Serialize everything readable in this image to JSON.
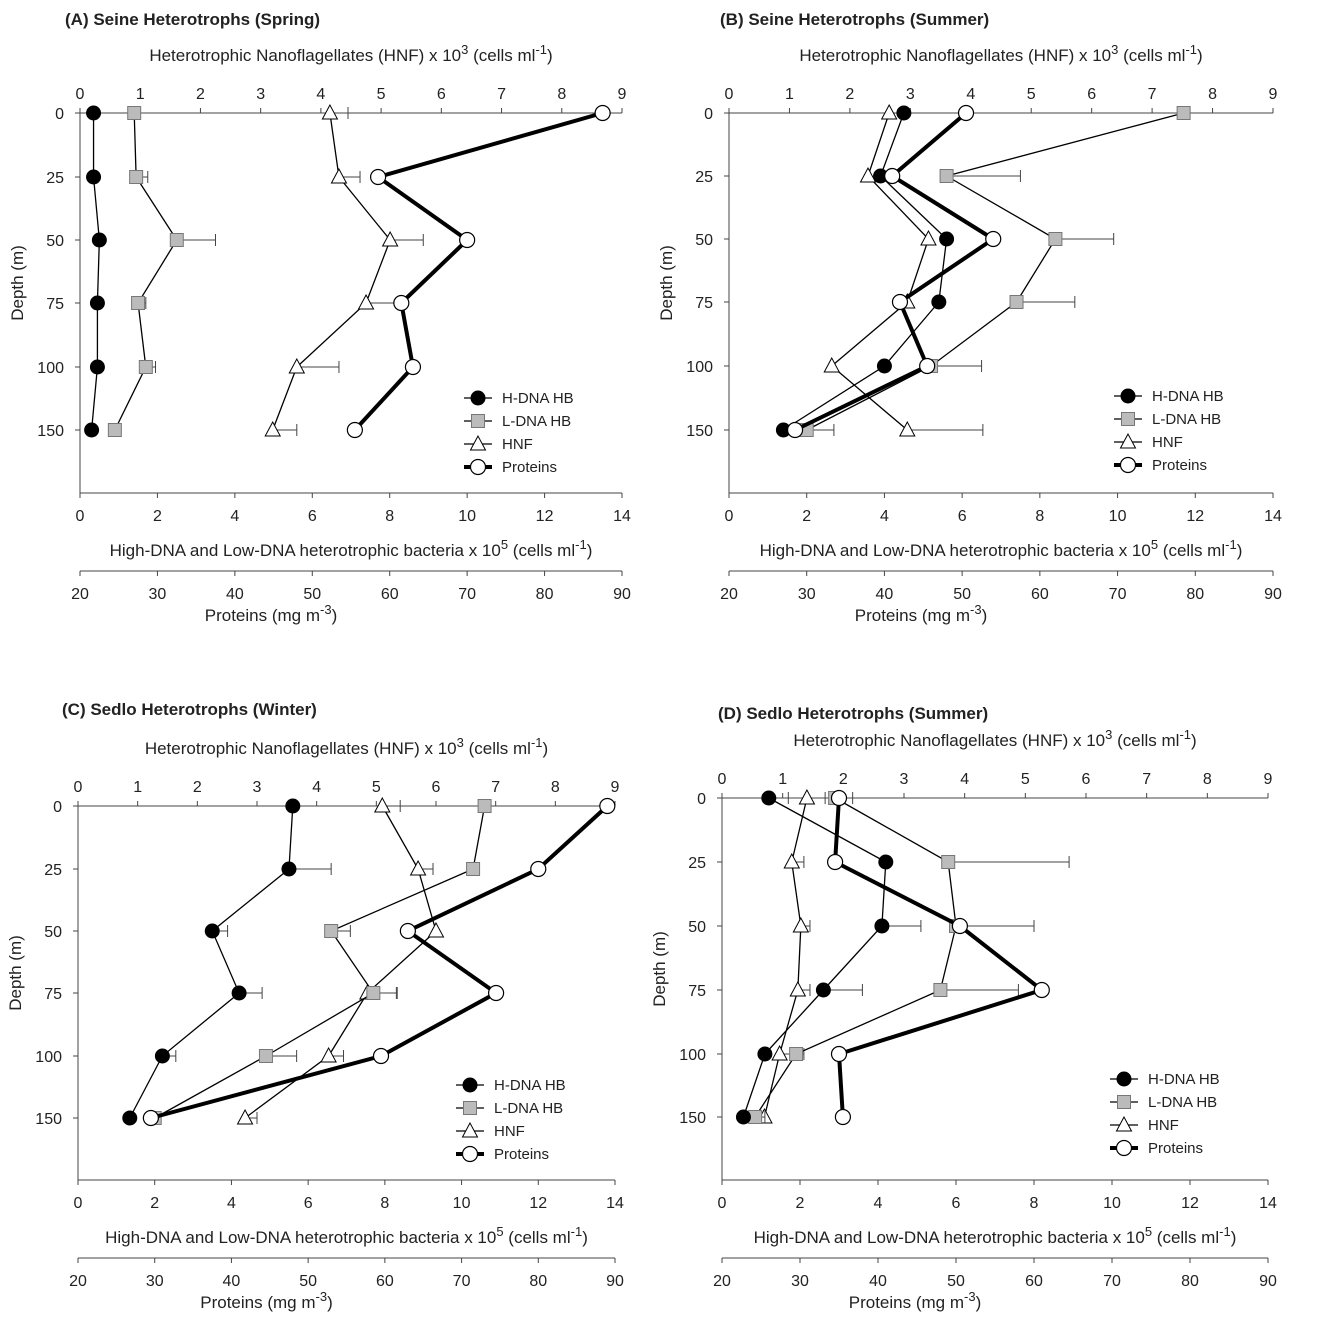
{
  "colors": {
    "hdna_fill": "#000000",
    "ldna_fill": "#bbbbbb",
    "hnf_fill": "#ffffff",
    "protein_fill": "#ffffff",
    "line": "#000000",
    "axis": "#444444"
  },
  "markers": {
    "hdna": "filled-circle",
    "ldna": "grey-square",
    "hnf": "open-triangle",
    "proteins": "open-circle"
  },
  "chart_data": [
    {
      "type": "line",
      "title": "(A) Seine Heterotrophs (Spring)",
      "top_axis": {
        "label": "Heterotrophic Nanoflagellates (HNF) x 10",
        "sup": "3",
        "unit": " (cells ml",
        "unit_sup": "-1",
        "unit_end": ")",
        "ticks": [
          "0",
          "1",
          "2",
          "3",
          "4",
          "5",
          "6",
          "7",
          "8",
          "9"
        ],
        "range": [
          0,
          9
        ]
      },
      "bottom_axis": {
        "label": "High-DNA and Low-DNA heterotrophic bacteria x 10",
        "sup": "5",
        "unit": " (cells ml",
        "unit_sup": "-1",
        "unit_end": ")",
        "ticks": [
          "0",
          "2",
          "4",
          "6",
          "8",
          "10",
          "12",
          "14"
        ],
        "range": [
          0,
          14
        ]
      },
      "protein_axis": {
        "label": "Proteins (mg m",
        "sup": "-3",
        "end": ")",
        "ticks": [
          "20",
          "30",
          "40",
          "50",
          "60",
          "70",
          "80",
          "90"
        ],
        "range": [
          20,
          90
        ]
      },
      "y_axis": {
        "label": "Depth (m)",
        "ticks": [
          "0",
          "25",
          "50",
          "75",
          "100",
          "150"
        ]
      },
      "depths": [
        0,
        25,
        50,
        75,
        100,
        150
      ],
      "legend": [
        "H-DNA HB",
        "L-DNA HB",
        "HNF",
        "Proteins"
      ],
      "series": [
        {
          "name": "H-DNA HB",
          "axis": "bottom",
          "values": [
            0.35,
            0.35,
            0.5,
            0.45,
            0.45,
            0.3
          ],
          "err": [
            0,
            0,
            0,
            0,
            0,
            0
          ]
        },
        {
          "name": "L-DNA HB",
          "axis": "bottom",
          "values": [
            1.4,
            1.45,
            2.5,
            1.5,
            1.7,
            0.9
          ],
          "err": [
            0.1,
            0.3,
            1.0,
            0.2,
            0.25,
            0
          ]
        },
        {
          "name": "HNF",
          "axis": "top",
          "values": [
            4.15,
            4.3,
            5.15,
            4.75,
            3.6,
            3.2
          ],
          "err": [
            0.3,
            0.35,
            0.55,
            0.5,
            0.7,
            0.4
          ]
        },
        {
          "name": "Proteins",
          "axis": "protein",
          "values": [
            87.5,
            58.5,
            70.0,
            61.5,
            63.0,
            55.5
          ],
          "err": [
            0,
            0,
            0,
            0,
            0,
            0
          ]
        }
      ]
    },
    {
      "type": "line",
      "title": "(B) Seine Heterotrophs (Summer)",
      "top_axis": {
        "label": "Heterotrophic Nanoflagellates (HNF) x 10",
        "sup": "3",
        "unit": " (cells ml",
        "unit_sup": "-1",
        "unit_end": ")",
        "ticks": [
          "0",
          "1",
          "2",
          "3",
          "4",
          "5",
          "6",
          "7",
          "8",
          "9"
        ],
        "range": [
          0,
          9
        ]
      },
      "bottom_axis": {
        "label": "High-DNA and Low-DNA heterotrophic bacteria x 10",
        "sup": "5",
        "unit": " (cells ml",
        "unit_sup": "-1",
        "unit_end": ")",
        "ticks": [
          "0",
          "2",
          "4",
          "6",
          "8",
          "10",
          "12",
          "14"
        ],
        "range": [
          0,
          14
        ]
      },
      "protein_axis": {
        "label": "Proteins (mg m",
        "sup": "-3",
        "end": ")",
        "ticks": [
          "20",
          "30",
          "40",
          "50",
          "60",
          "70",
          "80",
          "90"
        ],
        "range": [
          20,
          90
        ]
      },
      "y_axis": {
        "label": "Depth (m)",
        "ticks": [
          "0",
          "25",
          "50",
          "75",
          "100",
          "150"
        ]
      },
      "depths": [
        0,
        25,
        50,
        75,
        100,
        150
      ],
      "legend": [
        "H-DNA HB",
        "L-DNA HB",
        "HNF",
        "Proteins"
      ],
      "series": [
        {
          "name": "H-DNA HB",
          "axis": "bottom",
          "values": [
            4.5,
            3.9,
            5.6,
            5.4,
            4.0,
            1.4
          ],
          "err": [
            0,
            0,
            0,
            0,
            0,
            0
          ]
        },
        {
          "name": "L-DNA HB",
          "axis": "bottom",
          "values": [
            11.7,
            5.6,
            8.4,
            7.4,
            5.2,
            2.0
          ],
          "err": [
            0,
            1.9,
            1.5,
            1.5,
            1.3,
            0.7
          ]
        },
        {
          "name": "HNF",
          "axis": "top",
          "values": [
            2.65,
            2.3,
            3.3,
            2.95,
            1.7,
            2.95
          ],
          "err": [
            0,
            0,
            0,
            0,
            0,
            1.25
          ]
        },
        {
          "name": "Proteins",
          "axis": "protein",
          "values": [
            50.5,
            41.0,
            54.0,
            42.0,
            45.5,
            28.5
          ],
          "err": [
            0,
            0,
            0,
            0,
            0,
            0
          ]
        }
      ]
    },
    {
      "type": "line",
      "title": "(C) Sedlo Heterotrophs (Winter)",
      "top_axis": {
        "label": "Heterotrophic Nanoflagellates (HNF) x 10",
        "sup": "3",
        "unit": " (cells ml",
        "unit_sup": "-1",
        "unit_end": ")",
        "ticks": [
          "0",
          "1",
          "2",
          "3",
          "4",
          "5",
          "6",
          "7",
          "8",
          "9"
        ],
        "range": [
          0,
          9
        ]
      },
      "bottom_axis": {
        "label": "High-DNA and Low-DNA heterotrophic bacteria x 10",
        "sup": "5",
        "unit": " (cells ml",
        "unit_sup": "-1",
        "unit_end": ")",
        "ticks": [
          "0",
          "2",
          "4",
          "6",
          "8",
          "10",
          "12",
          "14"
        ],
        "range": [
          0,
          14
        ]
      },
      "protein_axis": {
        "label": "Proteins (mg m",
        "sup": "-3",
        "end": ")",
        "ticks": [
          "20",
          "30",
          "40",
          "50",
          "60",
          "70",
          "80",
          "90"
        ],
        "range": [
          20,
          90
        ]
      },
      "y_axis": {
        "label": "Depth (m)",
        "ticks": [
          "0",
          "25",
          "50",
          "75",
          "100",
          "150"
        ]
      },
      "depths": [
        0,
        25,
        50,
        75,
        100,
        150
      ],
      "legend": [
        "H-DNA HB",
        "L-DNA HB",
        "HNF",
        "Proteins"
      ],
      "series": [
        {
          "name": "H-DNA HB",
          "axis": "bottom",
          "values": [
            5.6,
            5.5,
            3.5,
            4.2,
            2.2,
            1.35
          ],
          "err": [
            0,
            1.1,
            0.4,
            0.6,
            0.35,
            0
          ]
        },
        {
          "name": "L-DNA HB",
          "axis": "bottom",
          "values": [
            10.6,
            10.3,
            6.6,
            7.7,
            4.9,
            2.0
          ],
          "err": [
            0,
            0,
            0.5,
            0.6,
            0.8,
            0
          ]
        },
        {
          "name": "HNF",
          "axis": "top",
          "values": [
            5.1,
            5.7,
            6.0,
            4.85,
            4.2,
            2.8
          ],
          "err": [
            0.3,
            0.25,
            0,
            0.5,
            0.25,
            0.2
          ]
        },
        {
          "name": "Proteins",
          "axis": "protein",
          "values": [
            89.0,
            80.0,
            63.0,
            74.5,
            59.5,
            29.5
          ],
          "err": [
            0,
            0,
            0,
            0,
            0,
            0
          ]
        }
      ]
    },
    {
      "type": "line",
      "title": "(D) Sedlo Heterotrophs (Summer)",
      "top_axis": {
        "label": "Heterotrophic Nanoflagellates (HNF) x 10",
        "sup": "3",
        "unit": " (cells ml",
        "unit_sup": "-1",
        "unit_end": ")",
        "ticks": [
          "0",
          "1",
          "2",
          "3",
          "4",
          "5",
          "6",
          "7",
          "8",
          "9"
        ],
        "range": [
          0,
          9
        ]
      },
      "bottom_axis": {
        "label": "High-DNA and Low-DNA heterotrophic bacteria x 10",
        "sup": "5",
        "unit": " (cells ml",
        "unit_sup": "-1",
        "unit_end": ")",
        "ticks": [
          "0",
          "2",
          "4",
          "6",
          "8",
          "10",
          "12",
          "14"
        ],
        "range": [
          0,
          14
        ]
      },
      "protein_axis": {
        "label": "Proteins (mg m",
        "sup": "-3",
        "end": ")",
        "ticks": [
          "20",
          "30",
          "40",
          "50",
          "60",
          "70",
          "80",
          "90"
        ],
        "range": [
          20,
          90
        ]
      },
      "y_axis": {
        "label": "Depth (m)",
        "ticks": [
          "0",
          "25",
          "50",
          "75",
          "100",
          "150"
        ]
      },
      "depths": [
        0,
        25,
        50,
        75,
        100,
        150
      ],
      "legend": [
        "H-DNA HB",
        "L-DNA HB",
        "HNF",
        "Proteins"
      ],
      "series": [
        {
          "name": "H-DNA HB",
          "axis": "bottom",
          "values": [
            1.2,
            4.2,
            4.1,
            2.6,
            1.1,
            0.55
          ],
          "err": [
            0.5,
            0,
            1.0,
            1.0,
            0,
            0
          ]
        },
        {
          "name": "L-DNA HB",
          "axis": "bottom",
          "values": [
            2.9,
            5.8,
            6.0,
            5.6,
            1.9,
            0.85
          ],
          "err": [
            0.45,
            3.1,
            2.0,
            2.0,
            0.2,
            0.25
          ]
        },
        {
          "name": "HNF",
          "axis": "top",
          "values": [
            1.4,
            1.15,
            1.3,
            1.25,
            0.95,
            0.7
          ],
          "err": [
            0.3,
            0.2,
            0.15,
            0.2,
            0.2,
            0
          ]
        },
        {
          "name": "Proteins",
          "axis": "protein",
          "values": [
            35.0,
            34.5,
            50.5,
            61.0,
            35.0,
            35.5
          ],
          "err": [
            0,
            0,
            0,
            0,
            0,
            0
          ]
        }
      ]
    }
  ]
}
